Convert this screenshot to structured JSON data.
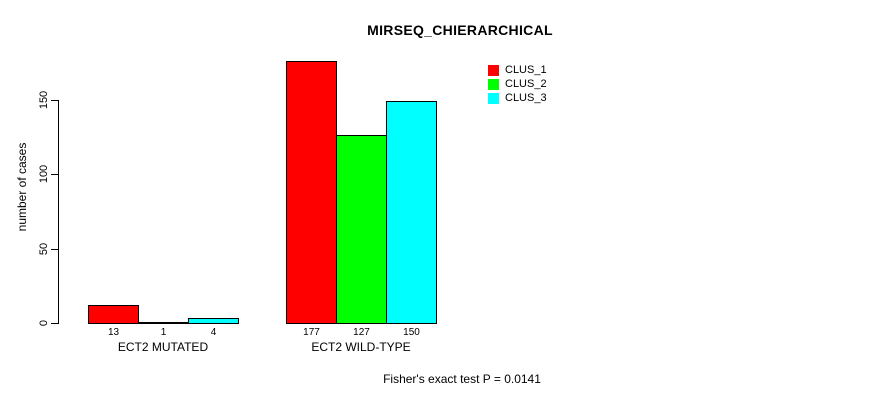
{
  "chart_data": {
    "type": "bar",
    "title": "MIRSEQ_CHIERARCHICAL",
    "xlabel": "",
    "ylabel": "number of cases",
    "categories": [
      "ECT2 MUTATED",
      "ECT2 WILD-TYPE"
    ],
    "series": [
      {
        "name": "CLUS_1",
        "color": "#FF0000",
        "values": [
          13,
          177
        ]
      },
      {
        "name": "CLUS_2",
        "color": "#00FF00",
        "values": [
          1,
          127
        ]
      },
      {
        "name": "CLUS_3",
        "color": "#00FFFF",
        "values": [
          4,
          150
        ]
      }
    ],
    "bar_value_labels": [
      [
        "13",
        "1",
        "4"
      ],
      [
        "177",
        "127",
        "150"
      ]
    ],
    "yticks": [
      "0",
      "50",
      "100",
      "150"
    ],
    "ytick_values": [
      0,
      50,
      100,
      150
    ],
    "ylim": [
      0,
      177
    ],
    "grid": false,
    "legend_position": "top-right",
    "legend_entries": [
      "CLUS_1",
      "CLUS_2",
      "CLUS_3"
    ],
    "annotation": "Fisher's exact test P = 0.0141",
    "colors": {
      "background": "#FFFFFF",
      "axis": "#000000",
      "bar_border": "#000000"
    }
  }
}
